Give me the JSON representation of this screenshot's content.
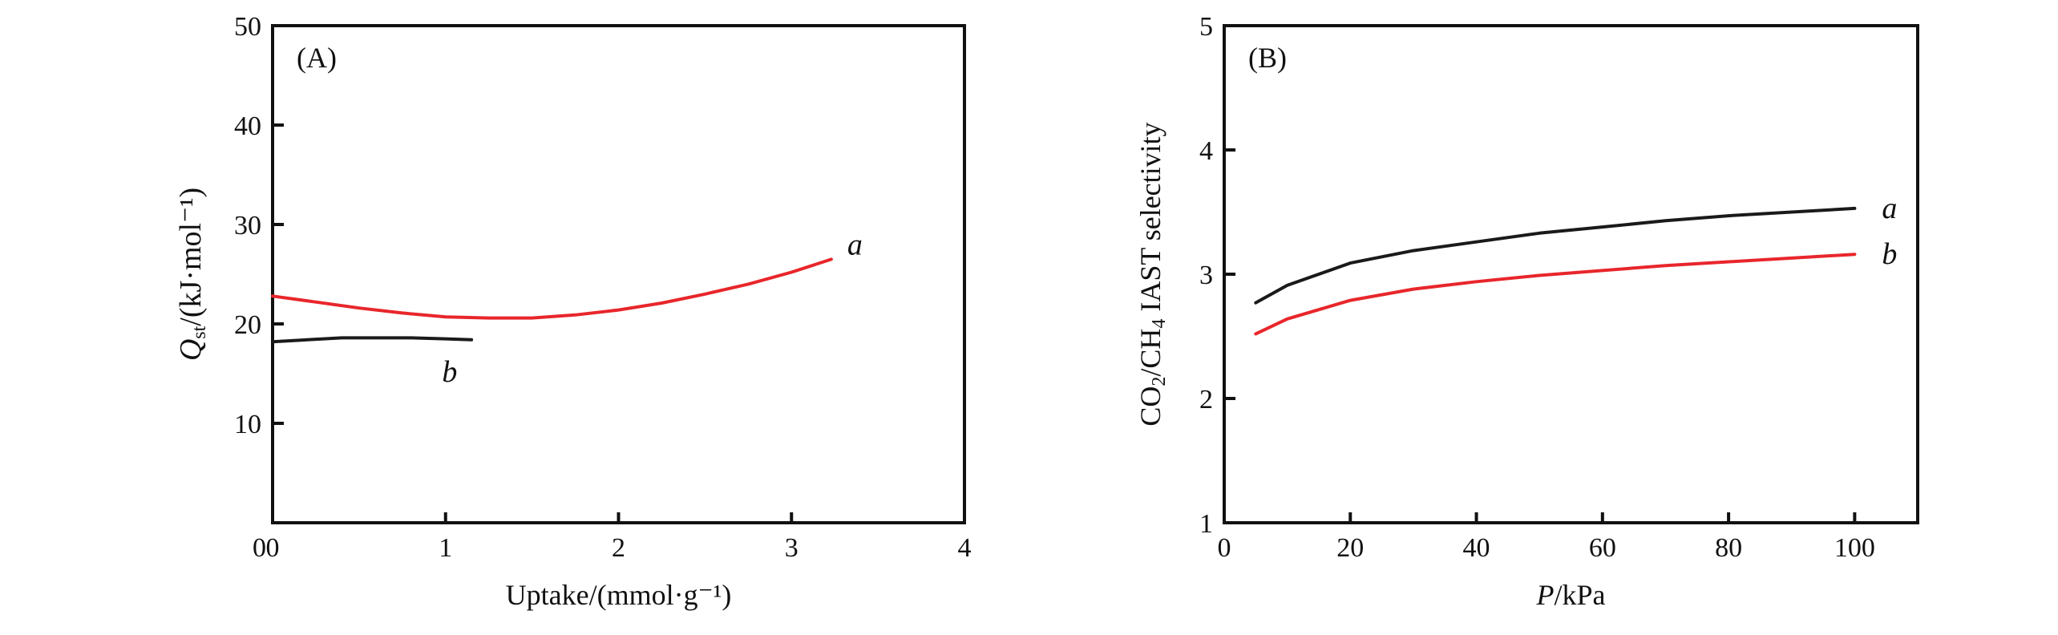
{
  "chart_data": [
    {
      "type": "line",
      "panel_label": "(A)",
      "xlabel": "Uptake/(mmol·g⁻¹)",
      "ylabel_main": "Q",
      "ylabel_sub": "st",
      "ylabel_rest": "/(kJ·mol⁻¹)",
      "xlim": [
        0,
        4
      ],
      "ylim": [
        0,
        50
      ],
      "xticks": [
        0,
        1,
        2,
        3,
        4
      ],
      "yticks": [
        0,
        10,
        20,
        30,
        40,
        50
      ],
      "grid": false,
      "series": [
        {
          "name": "a",
          "color": "#e8262b",
          "x": [
            0,
            0.25,
            0.5,
            0.75,
            1.0,
            1.25,
            1.5,
            1.75,
            2.0,
            2.25,
            2.5,
            2.75,
            3.0,
            3.23
          ],
          "y": [
            22.8,
            22.2,
            21.6,
            21.1,
            20.7,
            20.6,
            20.6,
            20.9,
            21.4,
            22.1,
            23.0,
            24.0,
            25.2,
            26.5
          ]
        },
        {
          "name": "b",
          "color": "#1a1a1a",
          "x": [
            0,
            0.2,
            0.4,
            0.6,
            0.8,
            1.0,
            1.15
          ],
          "y": [
            18.2,
            18.4,
            18.6,
            18.6,
            18.6,
            18.5,
            18.4
          ]
        }
      ]
    },
    {
      "type": "line",
      "panel_label": "(B)",
      "xlabel_main": "P",
      "xlabel_rest": "/kPa",
      "ylabel": "CO2/CH4 IAST selectivity",
      "ylabel_parts": [
        "CO",
        "2",
        "/CH",
        "4",
        " IAST selectivity"
      ],
      "xlim": [
        0,
        110
      ],
      "ylim": [
        1,
        5
      ],
      "xticks": [
        0,
        20,
        40,
        60,
        80,
        100
      ],
      "yticks": [
        1,
        2,
        3,
        4,
        5
      ],
      "grid": false,
      "series": [
        {
          "name": "a",
          "color": "#1a1a1a",
          "x": [
            5,
            10,
            20,
            30,
            40,
            50,
            60,
            70,
            80,
            90,
            100
          ],
          "y": [
            2.77,
            2.91,
            3.09,
            3.19,
            3.26,
            3.33,
            3.38,
            3.43,
            3.47,
            3.5,
            3.53
          ]
        },
        {
          "name": "b",
          "color": "#e8262b",
          "x": [
            5,
            10,
            20,
            30,
            40,
            50,
            60,
            70,
            80,
            90,
            100
          ],
          "y": [
            2.52,
            2.64,
            2.79,
            2.88,
            2.94,
            2.99,
            3.03,
            3.07,
            3.1,
            3.13,
            3.16
          ]
        }
      ]
    }
  ]
}
